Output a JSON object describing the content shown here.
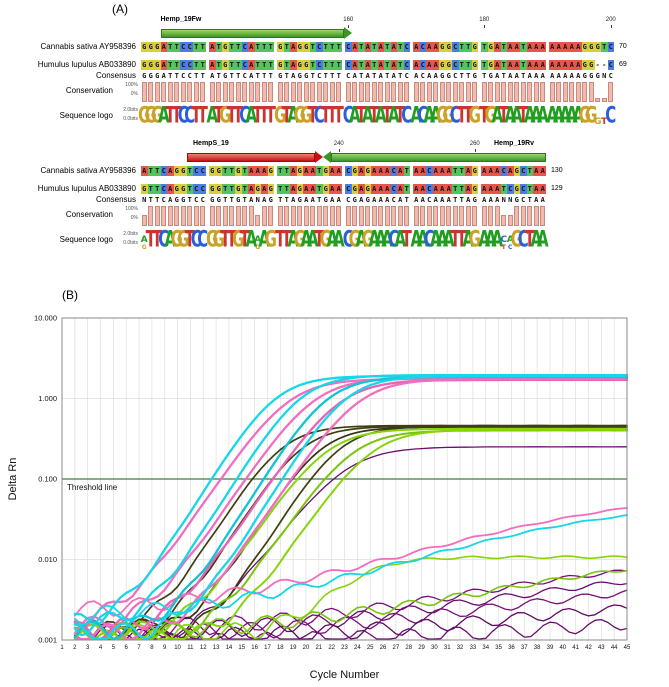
{
  "figure": {
    "panel_a_label": "(A)",
    "panel_b_label": "(B)"
  },
  "alignment": {
    "base_colors": {
      "A": "#e8554a",
      "C": "#4a7de8",
      "G": "#d9cf3a",
      "T": "#55c45e",
      "N": "#d8d8d8",
      "-": "#ffffff"
    },
    "logo_colors": {
      "A": "#1f9e1f",
      "C": "#2b5fd9",
      "G": "#c9a227",
      "T": "#cc3333",
      "N": "#777777",
      "-": "#777777"
    },
    "conservation_fill": "#f2b9ae",
    "conservation_border": "#c9897d",
    "blocks": [
      {
        "primers": [
          {
            "name": "Hemp_19Fw",
            "color": "green",
            "col_start": 4,
            "col_end": 31,
            "direction": "right",
            "label_x_col": 4
          }
        ],
        "ruler_ticks": [
          {
            "col": 31,
            "label": "160"
          },
          {
            "col": 51,
            "label": "180"
          },
          {
            "col": 70,
            "label": "200"
          }
        ],
        "rows": [
          {
            "label": "Cannabis sativa AY958396",
            "seq": "GGGATTCCTT ATGTTCATTT GTAGGTCTTT CATATATATC ACAAGGCTTG TGATAATAAA AAAAAGGGTC",
            "count": "70"
          },
          {
            "label": "Humulus lupulus AB033890",
            "seq": "GGGATTCCTT ATGTTCATTT GTAGGTCTTT CATATATATC ACAAGGCTTG TGATAATAAA AAAAAGG--C",
            "count": "69"
          }
        ],
        "consensus": {
          "label": "Consensus",
          "seq": "GGGATTCCTT ATGTTCATTT GTAGGTCTTT CATATATATC ACAAGGCTTG TGATAATAAA AAAAAGGGNC"
        },
        "conservation_label": "Conservation",
        "conservation_scale": {
          "top": "100%",
          "bottom": "0%"
        },
        "logo_label": "Sequence logo",
        "logo_scale": {
          "top": "2.0bits",
          "bottom": "0.0bits"
        }
      },
      {
        "primers": [
          {
            "name": "HempS_19",
            "color": "red",
            "col_start": 8,
            "col_end": 27,
            "direction": "right",
            "label_x_col": 9
          },
          {
            "name": "Hemp_19Rv",
            "color": "green",
            "col_start": 28,
            "col_end": 60,
            "direction": "left",
            "label_x_col": 53
          }
        ],
        "ruler_ticks": [
          {
            "col": 30,
            "label": "240"
          },
          {
            "col": 50,
            "label": "260"
          }
        ],
        "rows": [
          {
            "label": "Cannabis sativa AY958396",
            "seq": "ATTCAGGTCC GGTTGTAAAG TTAGAATGAA CGAGAAACAT AACAAATTAG AAACAGCTAA",
            "count": "130"
          },
          {
            "label": "Humulus lupulus AB033890",
            "seq": "GTTCAGGTCC GGTTGTAGAG TTAGAATGAA CGAGAAACAT AACAAATTAG AAATCGCTAA",
            "count": "129"
          }
        ],
        "consensus": {
          "label": "Consensus",
          "seq": "NTTCAGGTCC GGTTGTANAG TTAGAATGAA CGAGAAACAT AACAAATTAG AAANNGCTAA"
        },
        "conservation_label": "Conservation",
        "conservation_scale": {
          "top": "100%",
          "bottom": "0%"
        },
        "logo_label": "Sequence logo",
        "logo_scale": {
          "top": "2.0bits",
          "bottom": "0.0bits"
        }
      }
    ]
  },
  "chart_data": {
    "type": "line",
    "title": "",
    "xlabel": "Cycle Number",
    "ylabel": "Delta Rn",
    "x_range": [
      1,
      45
    ],
    "y_scale": "log",
    "y_range": [
      0.001,
      10
    ],
    "y_ticks": [
      {
        "label": "10.000",
        "value": 10
      },
      {
        "label": "1.000",
        "value": 1
      },
      {
        "label": "0.100",
        "value": 0.1
      },
      {
        "label": "0.010",
        "value": 0.01
      },
      {
        "label": "0.001",
        "value": 0.001
      }
    ],
    "grid": "vertical line per cycle, horizontal line per decade",
    "legend": "none",
    "threshold": {
      "value": 0.1,
      "label": "Threshold line",
      "color": "#3a7d3a"
    },
    "series_model": "value(cycle) = base + plateau / (1 + exp(-slope*(cycle - mid)))",
    "series": [
      {
        "name": "purple-1",
        "color": "#6a0d71",
        "width": 1.3,
        "base": 0.001,
        "plateau": 0.25,
        "mid": 23,
        "slope": 0.5
      },
      {
        "name": "purple-2",
        "color": "#7a0f7a",
        "width": 1.3,
        "base": 0.0013,
        "plateau": 0.009,
        "mid": 40,
        "slope": 0.13
      },
      {
        "name": "purple-3",
        "color": "#6a0d71",
        "width": 1.3,
        "base": 0.0012,
        "plateau": 0.007,
        "mid": 42,
        "slope": 0.12,
        "start": 3
      },
      {
        "name": "purple-4",
        "color": "#7a0f7a",
        "width": 1.3,
        "base": 0.0011,
        "plateau": 0.005,
        "mid": 43,
        "slope": 0.11
      },
      {
        "name": "purple-5",
        "color": "#5d0a63",
        "width": 1.3,
        "base": 0.001,
        "plateau": 0.003,
        "mid": 45,
        "slope": 0.1,
        "start": 5
      },
      {
        "name": "purple-6",
        "color": "#6a0d71",
        "width": 1.3,
        "base": 0.0009,
        "plateau": 0.0015,
        "mid": 46,
        "slope": 0.1,
        "start": 4
      },
      {
        "name": "olive-1",
        "color": "#3f3f12",
        "width": 1.7,
        "base": 0.0012,
        "plateau": 0.46,
        "mid": 18,
        "slope": 0.6
      },
      {
        "name": "olive-2",
        "color": "#3f3f12",
        "width": 1.7,
        "base": 0.0012,
        "plateau": 0.45,
        "mid": 19.5,
        "slope": 0.6
      },
      {
        "name": "olive-3",
        "color": "#34340e",
        "width": 1.7,
        "base": 0.0011,
        "plateau": 0.44,
        "mid": 21,
        "slope": 0.6
      },
      {
        "name": "olive-4",
        "color": "#3f3f12",
        "width": 1.7,
        "base": 0.001,
        "plateau": 0.45,
        "mid": 22.5,
        "slope": 0.6
      },
      {
        "name": "green-1",
        "color": "#86d40e",
        "width": 2,
        "base": 0.0012,
        "plateau": 0.42,
        "mid": 21.5,
        "slope": 0.55
      },
      {
        "name": "green-2",
        "color": "#79c50c",
        "width": 2,
        "base": 0.0011,
        "plateau": 0.4,
        "mid": 23.5,
        "slope": 0.55
      },
      {
        "name": "green-3",
        "color": "#86d40e",
        "width": 2,
        "base": 0.001,
        "plateau": 0.41,
        "mid": 25,
        "slope": 0.55
      },
      {
        "name": "green-4",
        "color": "#86d40e",
        "width": 1.6,
        "base": 0.0012,
        "plateau": 0.0095,
        "mid": 24,
        "slope": 0.5
      },
      {
        "name": "green-5",
        "color": "#79c50c",
        "width": 1.6,
        "base": 0.0012,
        "plateau": 0.012,
        "mid": 44,
        "slope": 0.12
      },
      {
        "name": "pink-1",
        "color": "#f06ec0",
        "width": 2.3,
        "base": 0.0016,
        "plateau": 1.75,
        "mid": 18.5,
        "slope": 0.55
      },
      {
        "name": "pink-2",
        "color": "#f06ec0",
        "width": 2.3,
        "base": 0.0014,
        "plateau": 1.8,
        "mid": 20.5,
        "slope": 0.55
      },
      {
        "name": "pink-3",
        "color": "#e862b5",
        "width": 2.3,
        "base": 0.0013,
        "plateau": 1.7,
        "mid": 22.5,
        "slope": 0.55
      },
      {
        "name": "pink-4",
        "color": "#f06ec0",
        "width": 2.3,
        "base": 0.0012,
        "plateau": 1.75,
        "mid": 24,
        "slope": 0.55
      },
      {
        "name": "pink-5",
        "color": "#f06ec0",
        "width": 1.8,
        "base": 0.002,
        "plateau": 0.07,
        "mid": 42,
        "slope": 0.13
      },
      {
        "name": "cyan-1",
        "color": "#17d6e8",
        "width": 2.3,
        "base": 0.0015,
        "plateau": 1.9,
        "mid": 17.5,
        "slope": 0.6
      },
      {
        "name": "cyan-2",
        "color": "#17d6e8",
        "width": 2.3,
        "base": 0.0015,
        "plateau": 1.95,
        "mid": 19.5,
        "slope": 0.6
      },
      {
        "name": "cyan-3",
        "color": "#10c4d6",
        "width": 2.3,
        "base": 0.0013,
        "plateau": 1.85,
        "mid": 21.5,
        "slope": 0.6
      },
      {
        "name": "cyan-4",
        "color": "#17d6e8",
        "width": 2.3,
        "base": 0.0012,
        "plateau": 1.9,
        "mid": 23,
        "slope": 0.6
      },
      {
        "name": "cyan-5",
        "color": "#17d6e8",
        "width": 1.8,
        "base": 0.0018,
        "plateau": 0.05,
        "mid": 40,
        "slope": 0.14
      }
    ]
  }
}
